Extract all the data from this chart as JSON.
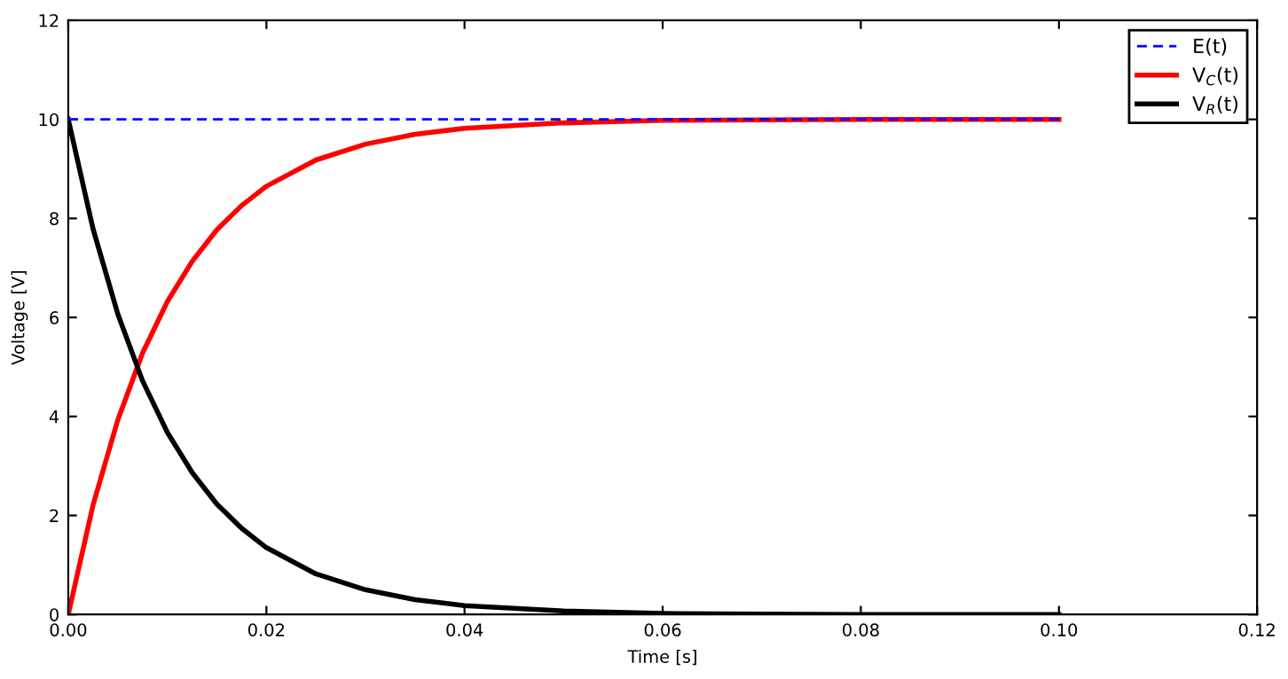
{
  "chart_data": {
    "type": "line",
    "xlabel": "Time [s]",
    "ylabel": "Voltage [V]",
    "xlim": [
      0,
      0.12
    ],
    "ylim": [
      0,
      12
    ],
    "xticks": [
      {
        "value": 0,
        "label": "0.00"
      },
      {
        "value": 0.02,
        "label": "0.02"
      },
      {
        "value": 0.04,
        "label": "0.04"
      },
      {
        "value": 0.06,
        "label": "0.06"
      },
      {
        "value": 0.08,
        "label": "0.08"
      },
      {
        "value": 0.1,
        "label": "0.10"
      },
      {
        "value": 0.12,
        "label": "0.12"
      }
    ],
    "yticks": [
      0,
      2,
      4,
      6,
      8,
      10,
      12
    ],
    "grid": false,
    "legend": "top right",
    "marker": "none",
    "series": [
      {
        "name": "E(t)",
        "color": "#0000ff",
        "line_style": "dashed",
        "x": [
          0,
          0.1
        ],
        "values": [
          10,
          10
        ]
      },
      {
        "name": "V$_{C}$(t)",
        "color": "#ff0000",
        "line_style": "solid",
        "x": [
          0,
          0.0025,
          0.005,
          0.0075,
          0.01,
          0.0125,
          0.015,
          0.0175,
          0.02,
          0.025,
          0.03,
          0.035,
          0.04,
          0.05,
          0.06,
          0.07,
          0.08,
          0.09,
          0.1
        ],
        "values": [
          0,
          2.21,
          3.93,
          5.28,
          6.32,
          7.13,
          7.77,
          8.26,
          8.65,
          9.18,
          9.5,
          9.7,
          9.82,
          9.93,
          9.98,
          9.99,
          10,
          10,
          10
        ]
      },
      {
        "name": "V$_{R}$(t)",
        "color": "#000000",
        "line_style": "solid",
        "x": [
          0,
          0.0025,
          0.005,
          0.0075,
          0.01,
          0.0125,
          0.015,
          0.0175,
          0.02,
          0.025,
          0.03,
          0.035,
          0.04,
          0.05,
          0.06,
          0.07,
          0.08,
          0.09,
          0.1
        ],
        "values": [
          10,
          7.79,
          6.07,
          4.72,
          3.68,
          2.87,
          2.23,
          1.74,
          1.35,
          0.82,
          0.5,
          0.3,
          0.18,
          0.07,
          0.02,
          0.01,
          0,
          0,
          0
        ]
      }
    ]
  }
}
